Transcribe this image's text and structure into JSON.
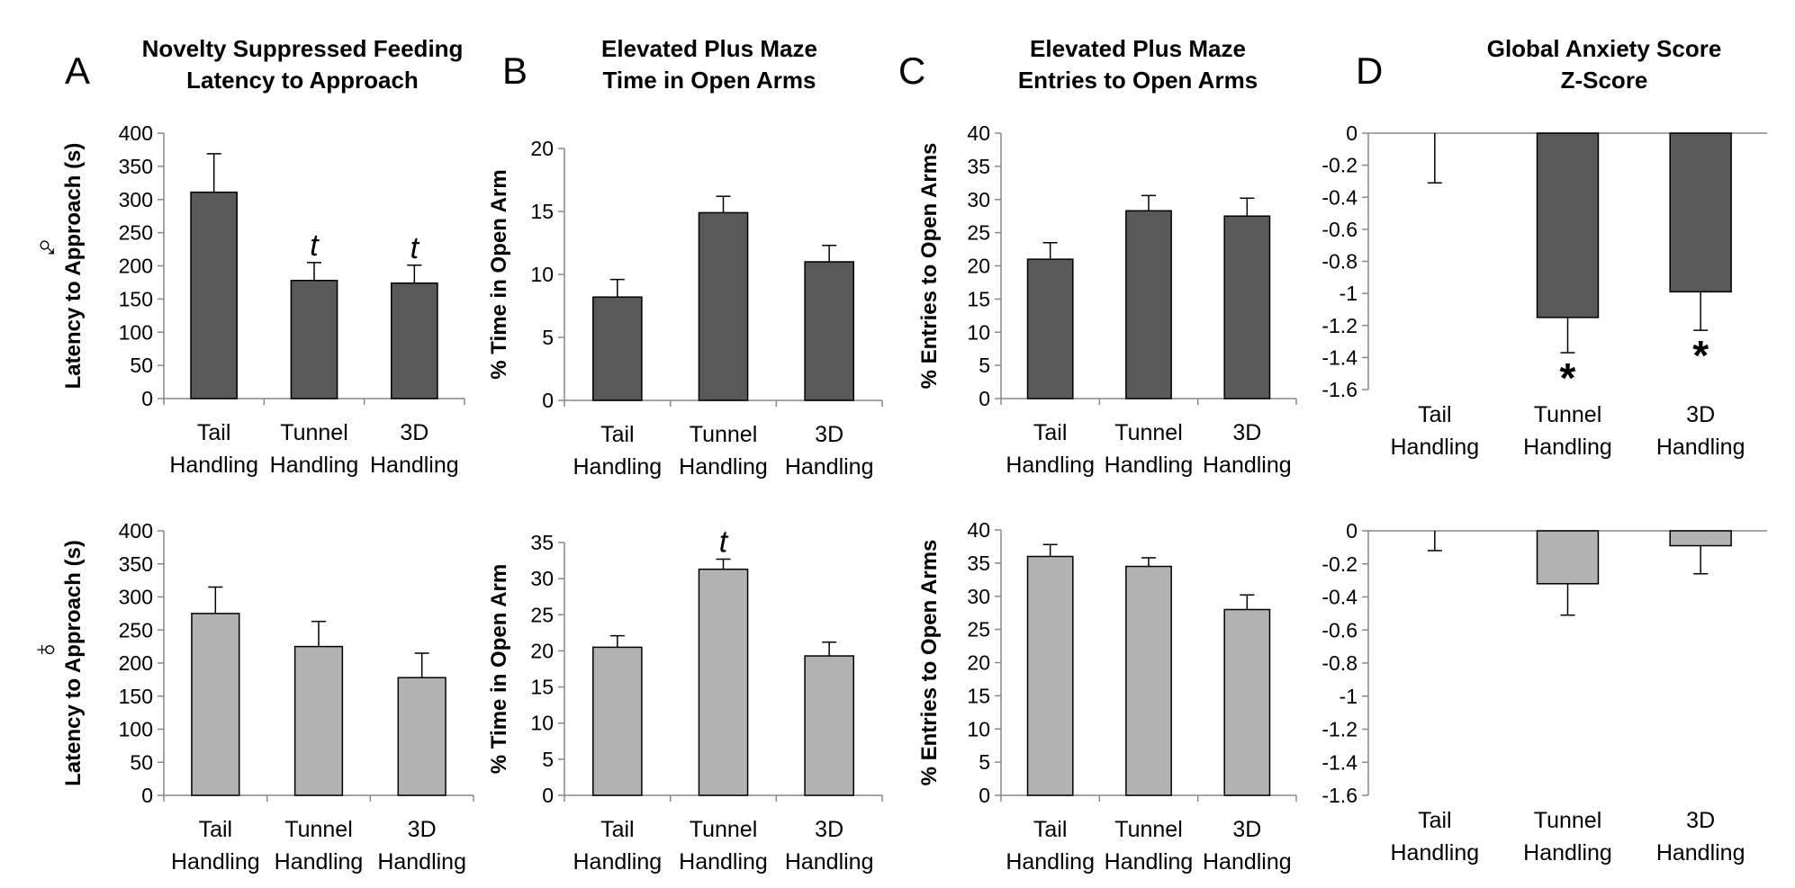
{
  "figure": {
    "row_labels": [
      "♂",
      "♀"
    ],
    "male_bar_color": "#595959",
    "female_bar_color": "#b3b3b3"
  },
  "panels": [
    {
      "letter": "A",
      "title_line1": "Novelty Suppressed Feeding",
      "title_line2": "Latency to Approach"
    },
    {
      "letter": "B",
      "title_line1": "Elevated Plus Maze",
      "title_line2": "Time in Open Arms"
    },
    {
      "letter": "C",
      "title_line1": "Elevated Plus Maze",
      "title_line2": "Entries to Open Arms"
    },
    {
      "letter": "D",
      "title_line1": "Global Anxiety Score",
      "title_line2": "Z-Score"
    }
  ],
  "chart_data": [
    {
      "id": "A-male",
      "panel": "A",
      "sex": "male",
      "type": "bar",
      "categories": [
        [
          "Tail",
          "Handling"
        ],
        [
          "Tunnel",
          "Handling"
        ],
        [
          "3D",
          "Handling"
        ]
      ],
      "values": [
        311,
        178,
        174
      ],
      "errors": [
        58,
        27,
        27
      ],
      "ylabel": "Latency to Approach (s)",
      "ylim": [
        0,
        400
      ],
      "ystep": 50,
      "annotations": [
        null,
        "t",
        "t"
      ]
    },
    {
      "id": "B-male",
      "panel": "B",
      "sex": "male",
      "type": "bar",
      "categories": [
        [
          "Tail",
          "Handling"
        ],
        [
          "Tunnel",
          "Handling"
        ],
        [
          "3D",
          "Handling"
        ]
      ],
      "values": [
        8.2,
        14.9,
        11.0
      ],
      "errors": [
        1.4,
        1.3,
        1.3
      ],
      "ylabel": "% Time in Open Arm",
      "ylim": [
        0,
        20
      ],
      "ystep": 5,
      "annotations": [
        null,
        null,
        null
      ]
    },
    {
      "id": "C-male",
      "panel": "C",
      "sex": "male",
      "type": "bar",
      "categories": [
        [
          "Tail",
          "Handling"
        ],
        [
          "Tunnel",
          "Handling"
        ],
        [
          "3D",
          "Handling"
        ]
      ],
      "values": [
        21.0,
        28.3,
        27.5
      ],
      "errors": [
        2.5,
        2.3,
        2.7
      ],
      "ylabel": "% Entries to Open Arms",
      "ylim": [
        0,
        40
      ],
      "ystep": 5,
      "annotations": [
        null,
        null,
        null
      ]
    },
    {
      "id": "D-male",
      "panel": "D",
      "sex": "male",
      "type": "bar",
      "categories": [
        [
          "Tail",
          "Handling"
        ],
        [
          "Tunnel",
          "Handling"
        ],
        [
          "3D",
          "Handling"
        ]
      ],
      "values": [
        0.0,
        -1.15,
        -0.99
      ],
      "errors": [
        0.31,
        0.22,
        0.24
      ],
      "ylabel": "",
      "ylim": [
        -1.6,
        0
      ],
      "ystep": 0.2,
      "axis_at_top": true,
      "annotations": [
        null,
        "*",
        "*"
      ]
    },
    {
      "id": "A-female",
      "panel": "A",
      "sex": "female",
      "type": "bar",
      "categories": [
        [
          "Tail",
          "Handling"
        ],
        [
          "Tunnel",
          "Handling"
        ],
        [
          "3D",
          "Handling"
        ]
      ],
      "values": [
        275,
        225,
        178
      ],
      "errors": [
        40,
        38,
        37
      ],
      "ylabel": "Latency to Approach (s)",
      "ylim": [
        0,
        400
      ],
      "ystep": 50,
      "annotations": [
        null,
        null,
        null
      ]
    },
    {
      "id": "B-female",
      "panel": "B",
      "sex": "female",
      "type": "bar",
      "categories": [
        [
          "Tail",
          "Handling"
        ],
        [
          "Tunnel",
          "Handling"
        ],
        [
          "3D",
          "Handling"
        ]
      ],
      "values": [
        20.5,
        31.3,
        19.3
      ],
      "errors": [
        1.6,
        1.4,
        1.9
      ],
      "ylabel": "% Time in Open Arm",
      "ylim": [
        0,
        35
      ],
      "ystep": 5,
      "annotations": [
        null,
        "t",
        null
      ]
    },
    {
      "id": "C-female",
      "panel": "C",
      "sex": "female",
      "type": "bar",
      "categories": [
        [
          "Tail",
          "Handling"
        ],
        [
          "Tunnel",
          "Handling"
        ],
        [
          "3D",
          "Handling"
        ]
      ],
      "values": [
        36.0,
        34.5,
        28.0
      ],
      "errors": [
        1.8,
        1.3,
        2.2
      ],
      "ylabel": "% Entries to Open Arms",
      "ylim": [
        0,
        40
      ],
      "ystep": 5,
      "annotations": [
        null,
        null,
        null
      ]
    },
    {
      "id": "D-female",
      "panel": "D",
      "sex": "female",
      "type": "bar",
      "categories": [
        [
          "Tail",
          "Handling"
        ],
        [
          "Tunnel",
          "Handling"
        ],
        [
          "3D",
          "Handling"
        ]
      ],
      "values": [
        0.0,
        -0.32,
        -0.09
      ],
      "errors": [
        0.12,
        0.19,
        0.17
      ],
      "ylabel": "",
      "ylim": [
        -1.6,
        0
      ],
      "ystep": 0.2,
      "axis_at_top": true,
      "annotations": [
        null,
        null,
        null
      ]
    }
  ]
}
